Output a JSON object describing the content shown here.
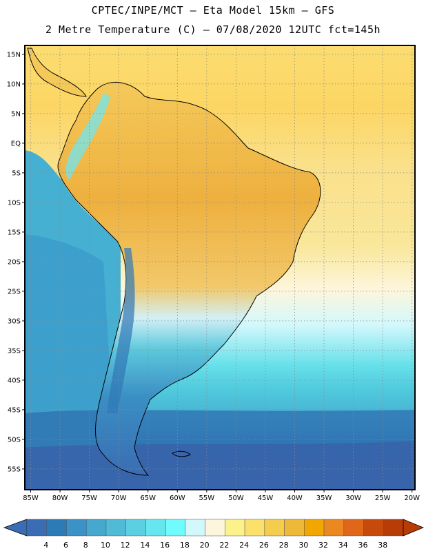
{
  "header": {
    "line1": "CPTEC/INPE/MCT –  Eta Model 15km – GFS",
    "line2": "2 Metre Temperature (C) – 07/08/2020 12UTC fct=145h"
  },
  "map": {
    "projection": "lat-lon",
    "lon_range": [
      -86,
      -19.5
    ],
    "lat_range": [
      -58.5,
      16.5
    ],
    "lat_labels": [
      {
        "lat": 15,
        "label": "15N"
      },
      {
        "lat": 10,
        "label": "10N"
      },
      {
        "lat": 5,
        "label": "5N"
      },
      {
        "lat": 0,
        "label": "EQ"
      },
      {
        "lat": -5,
        "label": "5S"
      },
      {
        "lat": -10,
        "label": "10S"
      },
      {
        "lat": -15,
        "label": "15S"
      },
      {
        "lat": -20,
        "label": "20S"
      },
      {
        "lat": -25,
        "label": "25S"
      },
      {
        "lat": -30,
        "label": "30S"
      },
      {
        "lat": -35,
        "label": "35S"
      },
      {
        "lat": -40,
        "label": "40S"
      },
      {
        "lat": -45,
        "label": "45S"
      },
      {
        "lat": -50,
        "label": "50S"
      },
      {
        "lat": -55,
        "label": "55S"
      }
    ],
    "lon_labels": [
      {
        "lon": -85,
        "label": "85W"
      },
      {
        "lon": -80,
        "label": "80W"
      },
      {
        "lon": -75,
        "label": "75W"
      },
      {
        "lon": -70,
        "label": "70W"
      },
      {
        "lon": -65,
        "label": "65W"
      },
      {
        "lon": -60,
        "label": "60W"
      },
      {
        "lon": -55,
        "label": "55W"
      },
      {
        "lon": -50,
        "label": "50W"
      },
      {
        "lon": -45,
        "label": "45W"
      },
      {
        "lon": -40,
        "label": "40W"
      },
      {
        "lon": -35,
        "label": "35W"
      },
      {
        "lon": -30,
        "label": "30W"
      },
      {
        "lon": -25,
        "label": "25W"
      },
      {
        "lon": -20,
        "label": "20W"
      }
    ],
    "grid": true
  },
  "colorbar": {
    "labels": [
      "4",
      "6",
      "8",
      "10",
      "12",
      "14",
      "16",
      "18",
      "20",
      "22",
      "24",
      "26",
      "28",
      "30",
      "32",
      "34",
      "36",
      "38"
    ],
    "colors": [
      "#3a6db3",
      "#2c7bb6",
      "#3a92c6",
      "#45a8cf",
      "#4fbbd6",
      "#5ccfe0",
      "#66e6ee",
      "#70fcfc",
      "#d2f8fc",
      "#fdf6dc",
      "#fcf28c",
      "#fae26a",
      "#f4cd4e",
      "#eeb838",
      "#f2a600",
      "#ec8820",
      "#e0661a",
      "#c84a0a",
      "#b83c06"
    ],
    "under_color": "#3a6db3",
    "over_color": "#b83c06"
  }
}
